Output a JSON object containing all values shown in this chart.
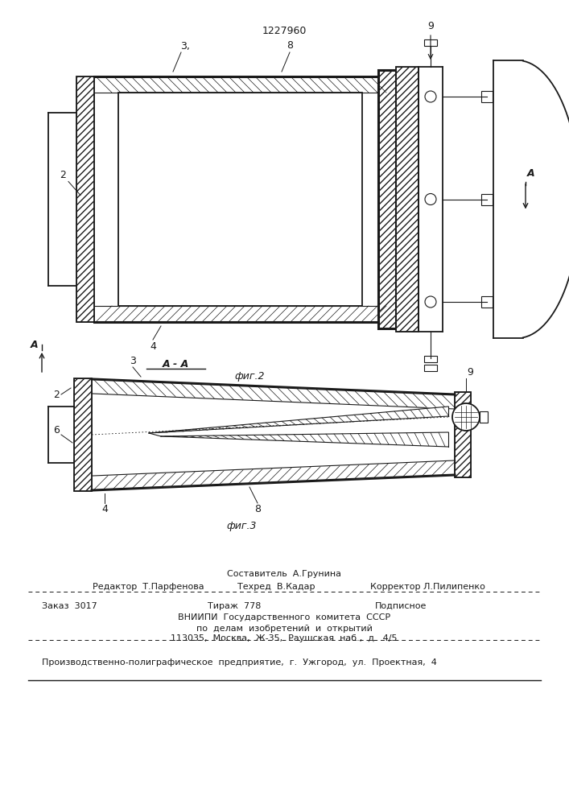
{
  "patent_number": "1227960",
  "bg_color": "#ffffff",
  "line_color": "#1a1a1a",
  "fig2_label": "фиг.2",
  "fig3_label": "фиг.3",
  "aa_label": "А - А",
  "title": "1227960",
  "footer_line1": "Составитель  А.Грунина",
  "footer_line2a": "Редактор  Т.Парфенова",
  "footer_line2b": "Техред  В.Кадар",
  "footer_line2c": "Корректор Л.Пилипенко",
  "footer_order": "Заказ  3017",
  "footer_tirazh": "Тираж  778",
  "footer_podp": "Подписное",
  "footer_vniip1": "ВНИИПИ  Государственного  комитета  СССР",
  "footer_vniip2": "по  делам  изобретений  и  открытий",
  "footer_vniip3": "113035,  Москва,  Ж-35,  Раушская  наб.,  д.  4/5",
  "footer_last": "Производственно-полиграфическое  предприятие,  г.  Ужгород,  ул.  Проектная,  4"
}
